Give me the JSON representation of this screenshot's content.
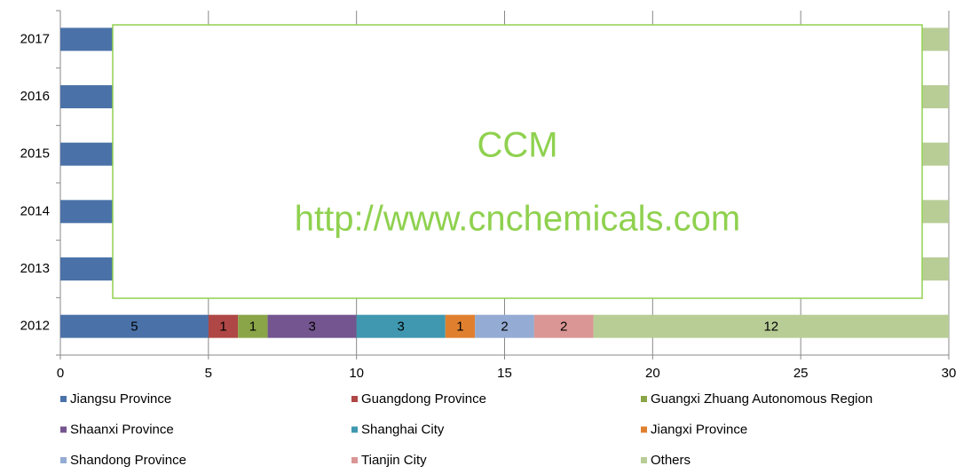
{
  "chart_data": {
    "type": "stacked-bar-horizontal",
    "categories": [
      "2012",
      "2013",
      "2014",
      "2015",
      "2016",
      "2017"
    ],
    "series": [
      {
        "name": "Jiangsu Province",
        "color": "#4a72a8",
        "values": [
          5,
          5,
          5,
          5,
          5,
          5
        ]
      },
      {
        "name": "Guangdong Province",
        "color": "#ae4745",
        "values": [
          1,
          1,
          1,
          1,
          1,
          1
        ]
      },
      {
        "name": "Guangxi Zhuang Autonomous Region",
        "color": "#8aa548",
        "values": [
          1,
          1,
          1,
          1,
          1,
          1
        ]
      },
      {
        "name": "Shaanxi Province",
        "color": "#74558f",
        "values": [
          3,
          3,
          3,
          3,
          3,
          3
        ]
      },
      {
        "name": "Shanghai City",
        "color": "#3f98b0",
        "values": [
          3,
          3,
          3,
          3,
          3,
          3
        ]
      },
      {
        "name": "Jiangxi Province",
        "color": "#e0802f",
        "values": [
          1,
          1,
          1,
          1,
          1,
          1
        ]
      },
      {
        "name": "Shandong Province",
        "color": "#94abd3",
        "values": [
          2,
          2,
          2,
          2,
          2,
          2
        ]
      },
      {
        "name": "Tianjin City",
        "color": "#d99694",
        "values": [
          2,
          2,
          2,
          2,
          2,
          2
        ]
      },
      {
        "name": "Others",
        "color": "#b8cd96",
        "values": [
          12,
          12,
          12,
          12,
          12,
          12
        ]
      }
    ],
    "xlim": [
      0,
      30
    ],
    "xticks": [
      0,
      5,
      10,
      15,
      20,
      25,
      30
    ],
    "grid": true,
    "annotations": [
      "CCM",
      "http://www.cnchemicals.com"
    ]
  }
}
